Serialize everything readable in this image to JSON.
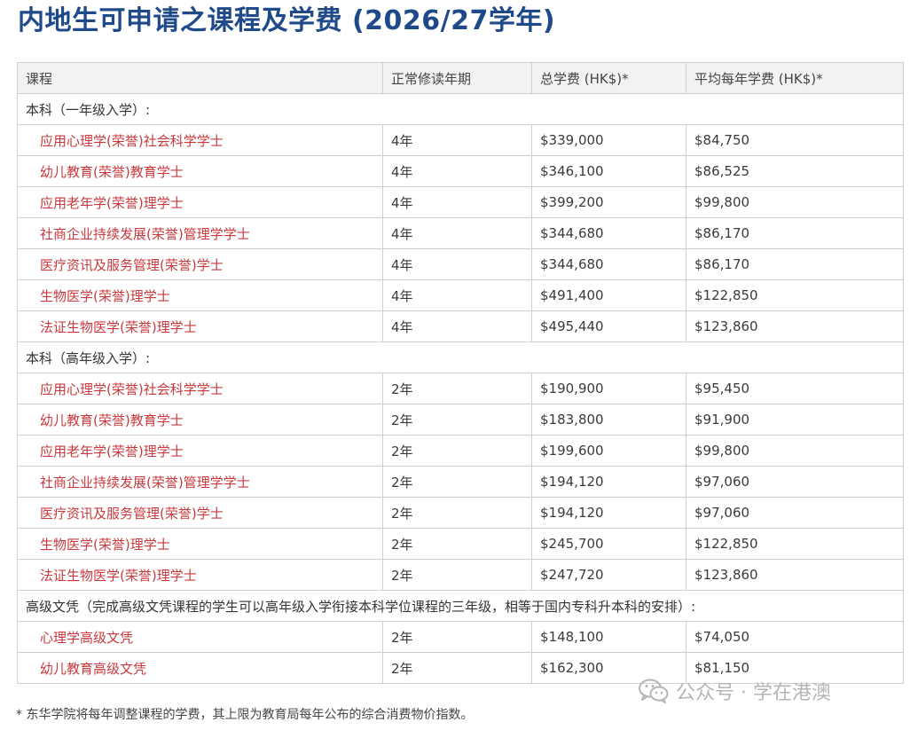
{
  "title": "内地生可申请之课程及学费 (2026/27学年)",
  "table": {
    "headers": [
      "课程",
      "正常修读年期",
      "总学费 (HK$)*",
      "平均每年学费 (HK$)*"
    ],
    "sections": [
      {
        "label": "本科（一年级入学）:",
        "rows": [
          {
            "course": "应用心理学(荣誉)社会科学学士",
            "duration": "4年",
            "total_fee": "$339,000",
            "annual_fee": "$84,750"
          },
          {
            "course": "幼儿教育(荣誉)教育学士",
            "duration": "4年",
            "total_fee": "$346,100",
            "annual_fee": "$86,525"
          },
          {
            "course": "应用老年学(荣誉)理学士",
            "duration": "4年",
            "total_fee": "$399,200",
            "annual_fee": "$99,800"
          },
          {
            "course": "社商企业持续发展(荣誉)管理学学士",
            "duration": "4年",
            "total_fee": "$344,680",
            "annual_fee": "$86,170"
          },
          {
            "course": "医疗资讯及服务管理(荣誉)学士",
            "duration": "4年",
            "total_fee": "$344,680",
            "annual_fee": "$86,170"
          },
          {
            "course": "生物医学(荣誉)理学士",
            "duration": "4年",
            "total_fee": "$491,400",
            "annual_fee": "$122,850"
          },
          {
            "course": "法证生物医学(荣誉)理学士",
            "duration": "4年",
            "total_fee": "$495,440",
            "annual_fee": "$123,860"
          }
        ]
      },
      {
        "label": "本科（高年级入学）:",
        "rows": [
          {
            "course": "应用心理学(荣誉)社会科学学士",
            "duration": "2年",
            "total_fee": "$190,900",
            "annual_fee": "$95,450"
          },
          {
            "course": "幼儿教育(荣誉)教育学士",
            "duration": "2年",
            "total_fee": "$183,800",
            "annual_fee": "$91,900"
          },
          {
            "course": "应用老年学(荣誉)理学士",
            "duration": "2年",
            "total_fee": "$199,600",
            "annual_fee": "$99,800"
          },
          {
            "course": "社商企业持续发展(荣誉)管理学学士",
            "duration": "2年",
            "total_fee": "$194,120",
            "annual_fee": "$97,060"
          },
          {
            "course": "医疗资讯及服务管理(荣誉)学士",
            "duration": "2年",
            "total_fee": "$194,120",
            "annual_fee": "$97,060"
          },
          {
            "course": "生物医学(荣誉)理学士",
            "duration": "2年",
            "total_fee": "$245,700",
            "annual_fee": "$122,850"
          },
          {
            "course": "法证生物医学(荣誉)理学士",
            "duration": "2年",
            "total_fee": "$247,720",
            "annual_fee": "$123,860"
          }
        ]
      },
      {
        "label": "高级文凭（完成高级文凭课程的学生可以高年级入学衔接本科学位课程的三年级，相等于国内专科升本科的安排）:",
        "rows": [
          {
            "course": "心理学高级文凭",
            "duration": "2年",
            "total_fee": "$148,100",
            "annual_fee": "$74,050"
          },
          {
            "course": "幼儿教育高级文凭",
            "duration": "2年",
            "total_fee": "$162,300",
            "annual_fee": "$81,150"
          }
        ]
      }
    ]
  },
  "footnote": "* 东华学院将每年调整课程的学费，其上限为教育局每年公布的综合消费物价指数。",
  "watermark": {
    "text": "公众号 · 学在港澳",
    "icon": "wechat-icon"
  },
  "colors": {
    "title": "#1f4a8a",
    "course_link": "#c9393d",
    "header_bg": "#f2f2f2",
    "border": "#cfcfcf"
  }
}
